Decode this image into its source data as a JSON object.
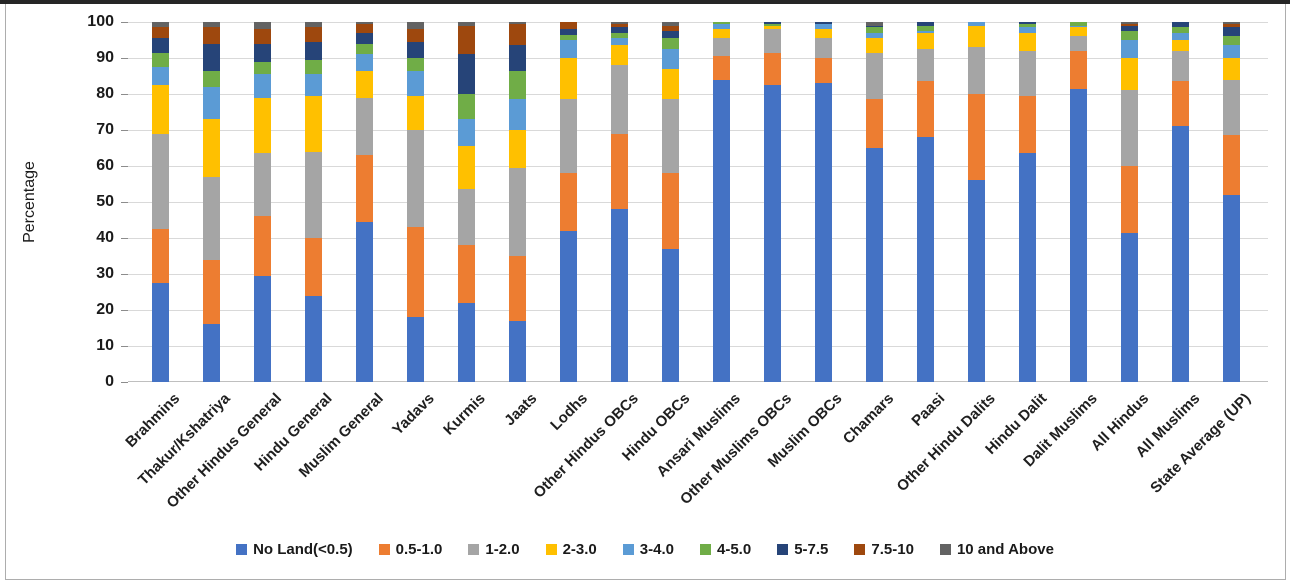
{
  "chart_data": {
    "type": "bar",
    "subtype": "stacked-percentage",
    "title": "",
    "ylabel": "Percentage",
    "xlabel": "",
    "ylim": [
      0,
      100
    ],
    "yticks": [
      0,
      10,
      20,
      30,
      40,
      50,
      60,
      70,
      80,
      90,
      100
    ],
    "grid": "horizontal",
    "legend_position": "bottom",
    "categories": [
      "Brahmins",
      "Thakur/Kshatriya",
      "Other Hindus General",
      "Hindu General",
      "Muslim General",
      "Yadavs",
      "Kurmis",
      "Jaats",
      "Lodhs",
      "Other Hindus OBCs",
      "Hindu OBCs",
      "Ansari Muslims",
      "Other Muslims OBCs",
      "Muslim OBCs",
      "Chamars",
      "Paasi",
      "Other Hindu Dalits",
      "Hindu Dalit",
      "Dalit Muslims",
      "All Hindus",
      "All Muslims",
      "State Average (UP)"
    ],
    "series": [
      {
        "name": "No Land(<0.5)",
        "color": "#4472C4",
        "values": [
          27.5,
          16,
          29.5,
          24,
          44.5,
          18,
          22,
          17,
          42,
          48,
          37,
          84,
          82.5,
          83,
          65,
          68,
          56,
          63.5,
          81.5,
          41.5,
          71,
          52
        ]
      },
      {
        "name": "0.5-1.0",
        "color": "#ED7D31",
        "values": [
          15,
          18,
          16.5,
          16,
          18.5,
          25,
          16,
          18,
          16,
          21,
          21,
          6.5,
          9,
          7,
          13.5,
          15.5,
          24,
          16,
          10.5,
          18.5,
          12.5,
          16.5
        ]
      },
      {
        "name": "1-2.0",
        "color": "#A5A5A5",
        "values": [
          26.5,
          23,
          17.5,
          24,
          16,
          27,
          15.5,
          24.5,
          20.5,
          19,
          20.5,
          5,
          6.5,
          5.5,
          13,
          9,
          13,
          12.5,
          4,
          21,
          8.5,
          15.5
        ]
      },
      {
        "name": "2-3.0",
        "color": "#FFC000",
        "values": [
          13.5,
          16,
          15.5,
          15.5,
          7.5,
          9.5,
          12,
          10.5,
          11.5,
          5.5,
          8.5,
          2.5,
          1,
          2.5,
          4,
          4.5,
          6,
          5,
          2.5,
          9,
          3,
          6
        ]
      },
      {
        "name": "3-4.0",
        "color": "#5B9BD5",
        "values": [
          5,
          9,
          6.5,
          6,
          4.5,
          7,
          7.5,
          8.5,
          5,
          2,
          5.5,
          1.5,
          0,
          1.5,
          1.5,
          0.5,
          1,
          1.5,
          0.5,
          5,
          2,
          3.5
        ]
      },
      {
        "name": "4-5.0",
        "color": "#70AD47",
        "values": [
          4,
          4.5,
          3.5,
          4,
          3,
          3.5,
          7,
          8,
          1.5,
          1.5,
          3,
          0.5,
          0.5,
          0,
          1.5,
          1.5,
          0,
          1,
          1,
          2.5,
          1.5,
          2.5
        ]
      },
      {
        "name": "5-7.5",
        "color": "#264478",
        "values": [
          4,
          7.5,
          5,
          5,
          3,
          4.5,
          11,
          7,
          1.5,
          1.5,
          2,
          0,
          0.5,
          0.5,
          0.5,
          1,
          0,
          0.5,
          0,
          1.5,
          1.5,
          2.5
        ]
      },
      {
        "name": "7.5-10",
        "color": "#9E480E",
        "values": [
          3,
          4.5,
          4,
          4,
          2.5,
          3.5,
          8,
          6,
          2,
          1,
          1.5,
          0,
          0,
          0,
          0,
          0,
          0,
          0,
          0,
          0.5,
          0,
          1
        ]
      },
      {
        "name": "10 and Above",
        "color": "#636363",
        "values": [
          1.5,
          1.5,
          2,
          1.5,
          0.5,
          2,
          1,
          0.5,
          0,
          0.5,
          1,
          0,
          0,
          0,
          1,
          0,
          0,
          0,
          0,
          0.5,
          0,
          0.5
        ]
      }
    ]
  },
  "style": {
    "gridline_color": "#d9d9d9",
    "axis_line_color": "#bfbfbf",
    "tick_color": "#8c8c8c",
    "text_color": "#1a1a1a",
    "top_strip_color": "#262626"
  }
}
